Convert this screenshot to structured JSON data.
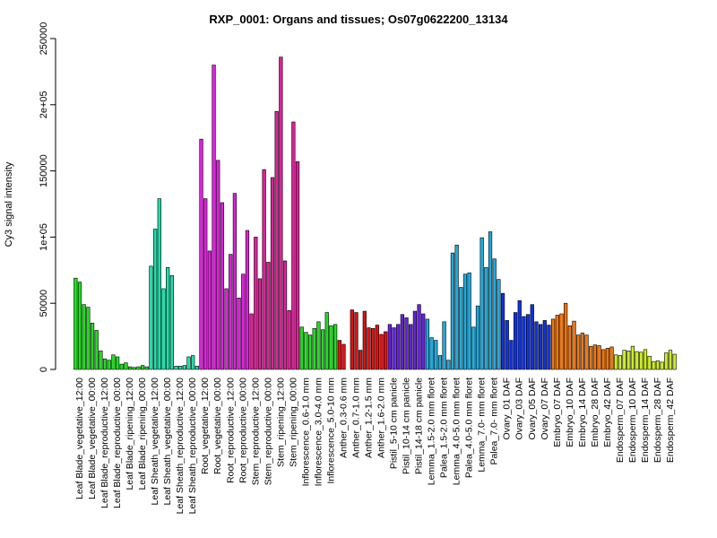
{
  "chart_data": {
    "type": "bar",
    "title": "RXP_0001: Organs and tissues; Os07g0622200_13134",
    "ylabel": "Cy3 signal intensity",
    "xlabel": "",
    "ylim": [
      0,
      250000
    ],
    "yticks": [
      0,
      50000,
      100000,
      150000,
      200000,
      250000
    ],
    "ytick_labels": [
      "0",
      "50000",
      "1e+05",
      "150000",
      "2e+05",
      "250000"
    ],
    "grid": false,
    "legend": "none",
    "groups": [
      {
        "label": "Leaf Blade_vegetative_12:00",
        "color": "#22dd22",
        "values": [
          69000,
          66000,
          49000
        ]
      },
      {
        "label": "Leaf Blade_vegetative_00:00",
        "color": "#22dd22",
        "values": [
          47000,
          35000,
          29500
        ]
      },
      {
        "label": "Leaf Blade_reproductive_12:00",
        "color": "#22dd22",
        "values": [
          14000,
          8000,
          7000
        ]
      },
      {
        "label": "Leaf Blade_reproductive_00:00",
        "color": "#22dd22",
        "values": [
          11000,
          9500,
          4000
        ]
      },
      {
        "label": "Leaf Blade_ripening_12:00",
        "color": "#22dd22",
        "values": [
          5000,
          2000,
          1500
        ]
      },
      {
        "label": "Leaf Blade_ripening_00:00",
        "color": "#22dd22",
        "values": [
          2000,
          3000,
          2000
        ]
      },
      {
        "label": "Leaf Sheath_vegetative_12:00",
        "color": "#22ddaa",
        "values": [
          78000,
          106000,
          129000
        ]
      },
      {
        "label": "Leaf Sheath_vegetative_00:00",
        "color": "#22ddaa",
        "values": [
          61000,
          77000,
          71000
        ]
      },
      {
        "label": "Leaf Sheath_reproductive_12:00",
        "color": "#22ddaa",
        "values": [
          2500,
          2500,
          3000
        ]
      },
      {
        "label": "Leaf Sheath_reproductive_00:00",
        "color": "#22ddaa",
        "values": [
          9500,
          10500,
          2500
        ]
      },
      {
        "label": "Root_vegetative_12:00",
        "color": "#dd22dd",
        "values": [
          174000,
          129000,
          89500
        ]
      },
      {
        "label": "Root_vegetative_00:00",
        "color": "#dd22dd",
        "values": [
          230000,
          158000,
          126000
        ]
      },
      {
        "label": "Root_reproductive_12:00",
        "color": "#dd22dd",
        "values": [
          61000,
          87000,
          133000
        ]
      },
      {
        "label": "Root_reproductive_00:00",
        "color": "#dd22dd",
        "values": [
          54000,
          72000,
          105000
        ]
      },
      {
        "label": "Stem_reproductive_12:00",
        "color": "#dd2299",
        "values": [
          42000,
          100000,
          68500
        ]
      },
      {
        "label": "Stem_reproductive_00:00",
        "color": "#dd2299",
        "values": [
          151000,
          81000,
          145000
        ]
      },
      {
        "label": "Stem_ripening_12:00",
        "color": "#dd2299",
        "values": [
          195000,
          236000,
          82000
        ]
      },
      {
        "label": "Stem_ripening_00:00",
        "color": "#dd2299",
        "values": [
          44500,
          187000,
          157000
        ]
      },
      {
        "label": "Inflorescence_0.6-1.0 mm",
        "color": "#22dd22",
        "values": [
          32000,
          28000,
          26000
        ]
      },
      {
        "label": "Inflorescence_3.0-4.0 mm",
        "color": "#22dd22",
        "values": [
          31000,
          36000,
          30000
        ]
      },
      {
        "label": "Inflorescence_5.0-10 mm",
        "color": "#22dd22",
        "values": [
          43000,
          33000,
          34000
        ]
      },
      {
        "label": "Anther_0.3-0.6 mm",
        "color": "#dd1111",
        "values": [
          22000,
          19000,
          0
        ]
      },
      {
        "label": "Anther_0.7-1.0 mm",
        "color": "#dd1111",
        "values": [
          45000,
          43000,
          14500
        ]
      },
      {
        "label": "Anther_1.2-1.5 mm",
        "color": "#dd1111",
        "values": [
          44000,
          31500,
          31000
        ]
      },
      {
        "label": "Anther_1.6-2.0 mm",
        "color": "#dd1111",
        "values": [
          33500,
          26500,
          28500
        ]
      },
      {
        "label": "Pistil_5-10 cm panicle",
        "color": "#6622dd",
        "values": [
          34000,
          31500,
          34000
        ]
      },
      {
        "label": "Pistil_10-14 cm panicle",
        "color": "#6622dd",
        "values": [
          41500,
          39000,
          34000
        ]
      },
      {
        "label": "Pistil_14-18 cm panicle",
        "color": "#6622dd",
        "values": [
          44000,
          49000,
          42000
        ]
      },
      {
        "label": "Lemma_1.5-2.0 mm floret",
        "color": "#22aadd",
        "values": [
          38000,
          24000,
          22000
        ]
      },
      {
        "label": "Palea_1.5-2.0 mm floret",
        "color": "#22aadd",
        "values": [
          10500,
          36000,
          7000
        ]
      },
      {
        "label": "Lemma_4.0-5.0 mm floret",
        "color": "#22aadd",
        "values": [
          88000,
          94000,
          62000
        ]
      },
      {
        "label": "Palea_4.0-5.0 mm floret",
        "color": "#22aadd",
        "values": [
          72000,
          73000,
          32000
        ]
      },
      {
        "label": "Lemma_7.0- mm floret",
        "color": "#22aadd",
        "values": [
          48000,
          99500,
          77000
        ]
      },
      {
        "label": "Palea_7.0- mm floret",
        "color": "#22aadd",
        "values": [
          104000,
          83500,
          68000
        ]
      },
      {
        "label": "Ovary_01 DAF",
        "color": "#1133dd",
        "values": [
          57500,
          37000,
          22000
        ]
      },
      {
        "label": "Ovary_03 DAF",
        "color": "#1133dd",
        "values": [
          43000,
          52000,
          40000
        ]
      },
      {
        "label": "Ovary_05 DAF",
        "color": "#1133dd",
        "values": [
          41500,
          49000,
          36000
        ]
      },
      {
        "label": "Ovary_07 DAF",
        "color": "#1133dd",
        "values": [
          34000,
          37000,
          33500
        ]
      },
      {
        "label": "Embryo_07 DAF",
        "color": "#ee7711",
        "values": [
          38000,
          41000,
          42000
        ]
      },
      {
        "label": "Embryo_10 DAF",
        "color": "#ee7711",
        "values": [
          50000,
          33000,
          36500
        ]
      },
      {
        "label": "Embryo_14 DAF",
        "color": "#ee7711",
        "values": [
          26000,
          27500,
          26000
        ]
      },
      {
        "label": "Embryo_28 DAF",
        "color": "#ee7711",
        "values": [
          17500,
          18500,
          18000
        ]
      },
      {
        "label": "Embryo_42 DAF",
        "color": "#ee7711",
        "values": [
          15000,
          16000,
          17000
        ]
      },
      {
        "label": "Endosperm_07 DAF",
        "color": "#ccee22",
        "values": [
          11000,
          10500,
          14500
        ]
      },
      {
        "label": "Endosperm_10 DAF",
        "color": "#ccee22",
        "values": [
          14000,
          17500,
          13500
        ]
      },
      {
        "label": "Endosperm_14 DAF",
        "color": "#ccee22",
        "values": [
          13000,
          15000,
          10000
        ]
      },
      {
        "label": "Endosperm_28 DAF",
        "color": "#ccee22",
        "values": [
          6000,
          6500,
          5500
        ]
      },
      {
        "label": "Endosperm_42 DAF",
        "color": "#ccee22",
        "values": [
          12500,
          14500,
          11500
        ]
      }
    ]
  }
}
